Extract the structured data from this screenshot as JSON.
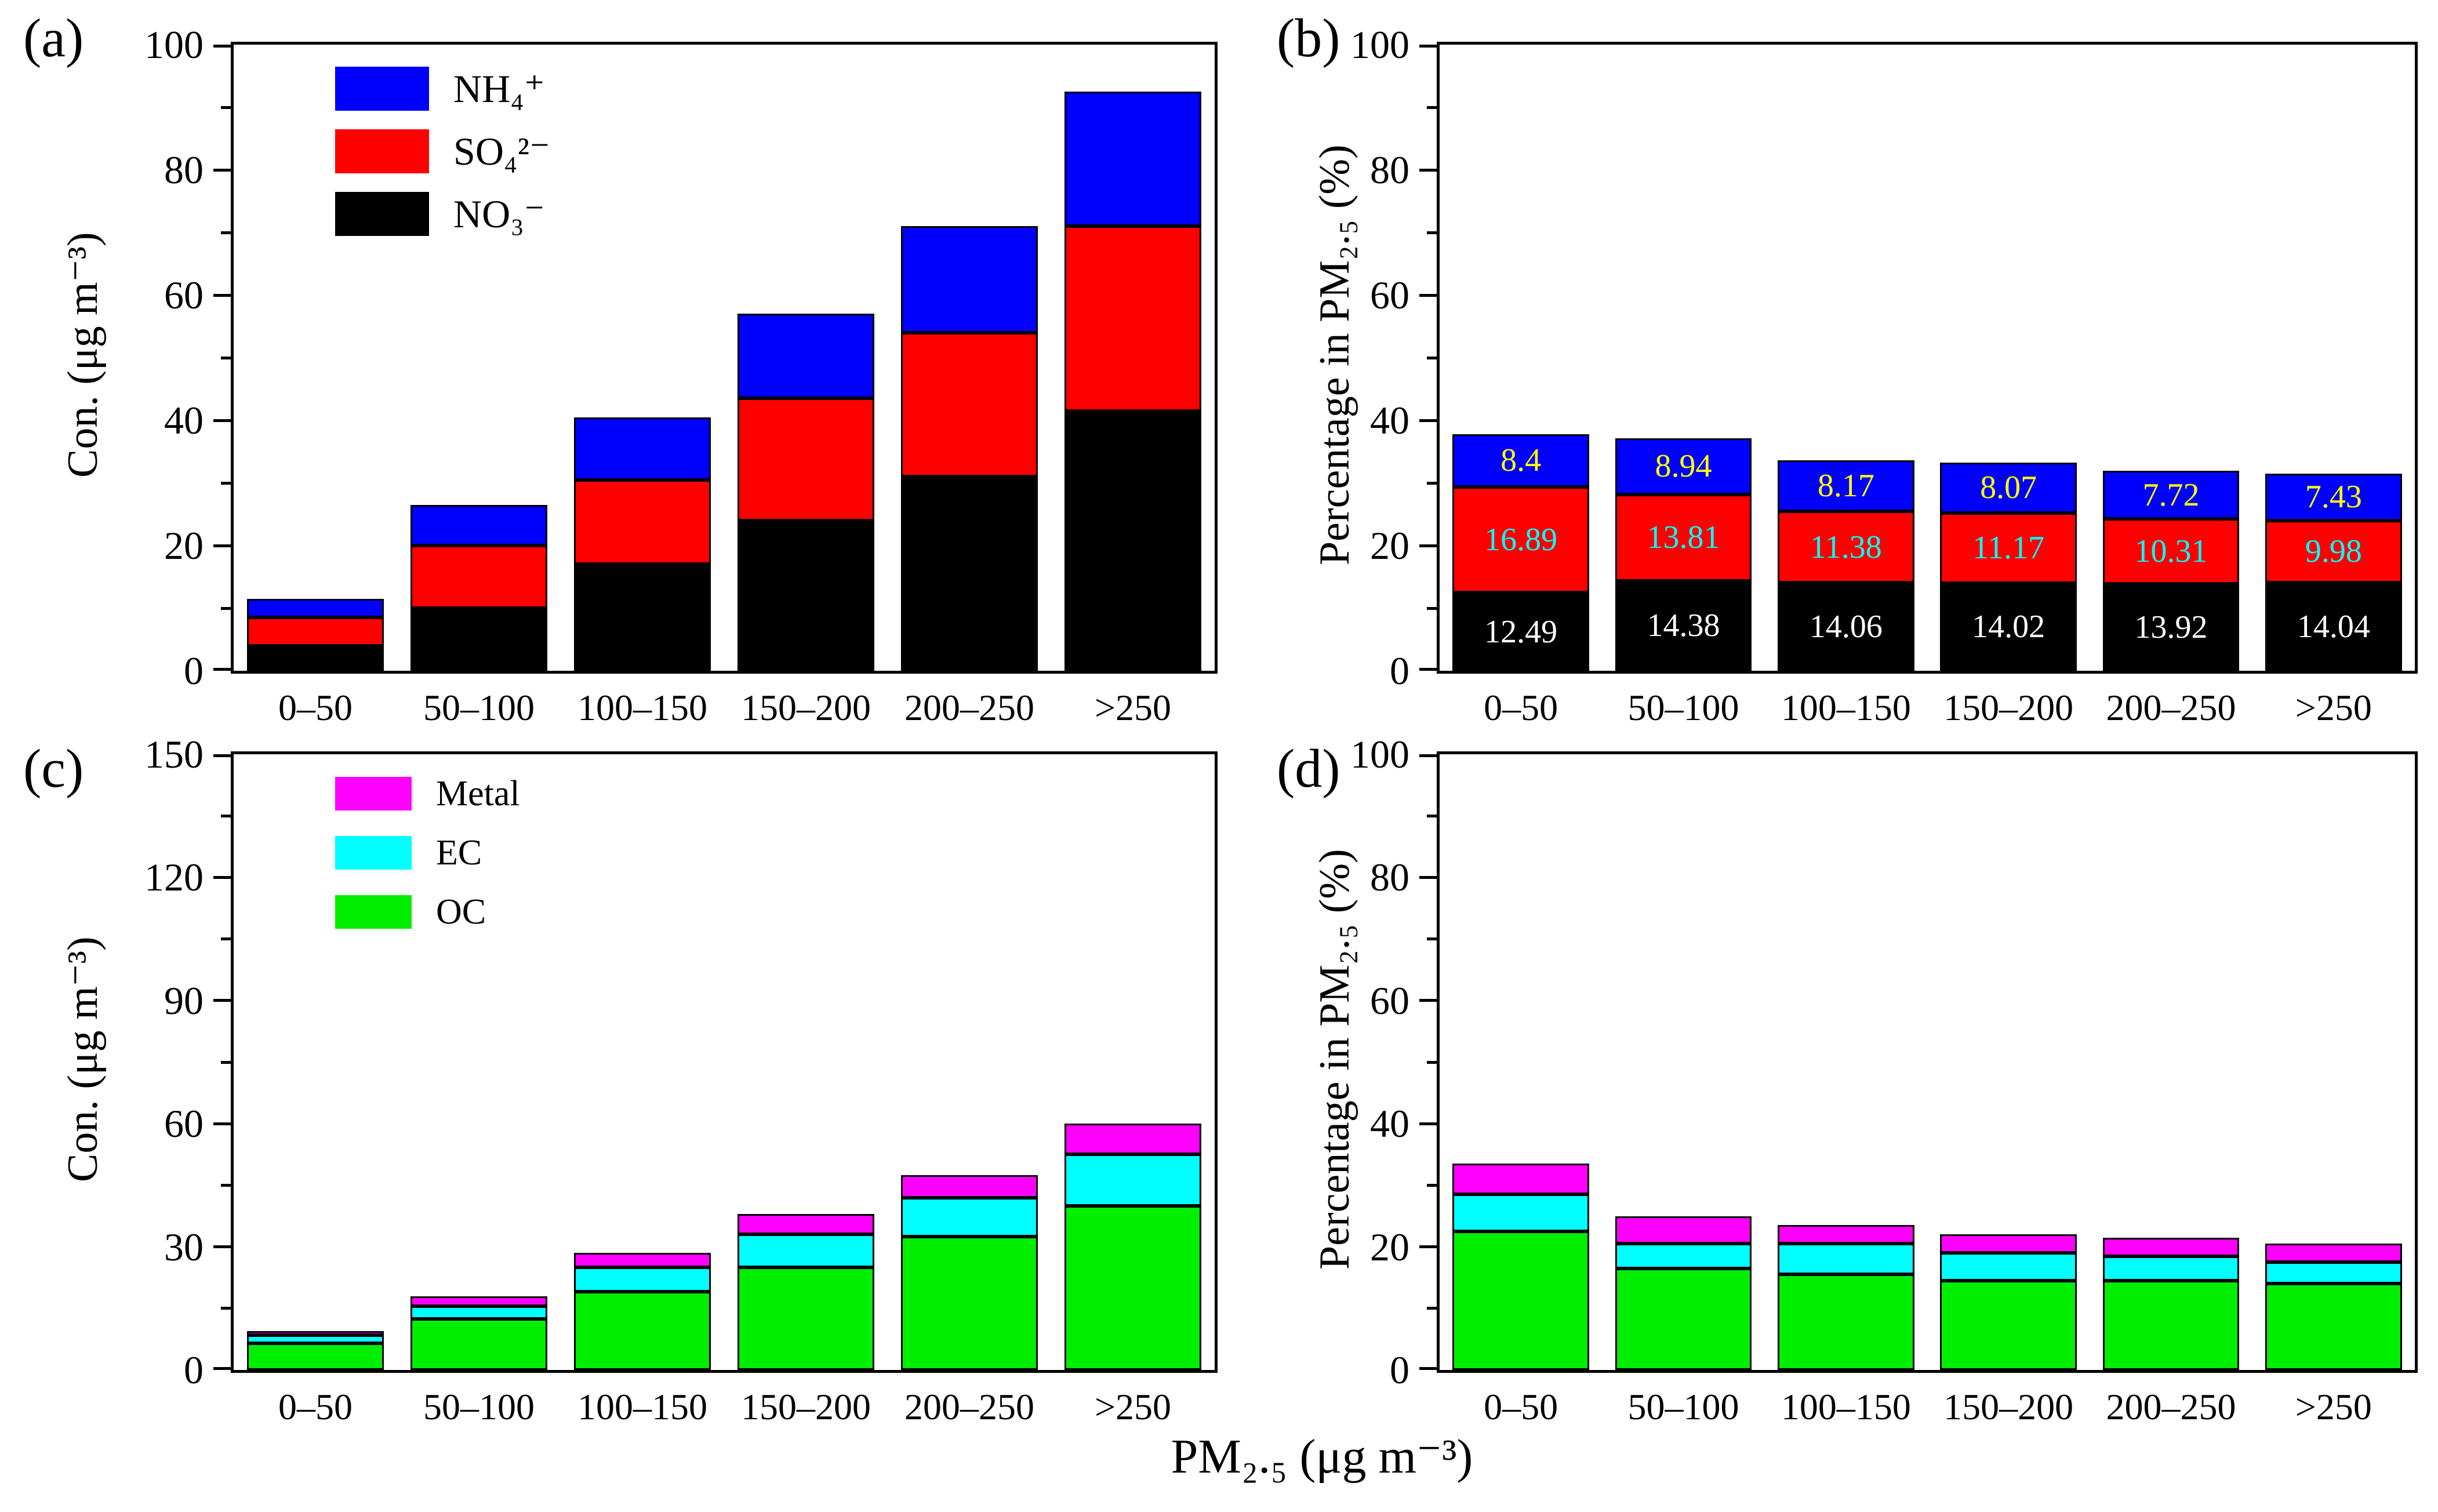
{
  "figure": {
    "xlabel": "PM₂.₅ (μg m⁻³)",
    "categories": [
      "0–50",
      "50–100",
      "100–150",
      "150–200",
      "200–250",
      ">250"
    ]
  },
  "colors": {
    "nh4": "#0000ff",
    "so4": "#ff0000",
    "no3": "#000000",
    "metal": "#ff00ff",
    "ec": "#00ffff",
    "oc": "#00ee00",
    "label_on_black": "#ffffff",
    "label_on_red": "#00ffff",
    "label_on_blue": "#ffff00"
  },
  "chart_data": [
    {
      "id": "a",
      "type": "bar",
      "stacked": true,
      "label": "(a)",
      "ylabel": "Con. (μg m⁻³)",
      "ylim": [
        0,
        100
      ],
      "yticks": [
        0,
        20,
        40,
        60,
        80,
        100
      ],
      "legend": [
        {
          "label": "NH₄⁺",
          "color": "#0000ff"
        },
        {
          "label": "SO₄²⁻",
          "color": "#ff0000"
        },
        {
          "label": "NO₃⁻",
          "color": "#000000"
        }
      ],
      "series": [
        {
          "name": "NO₃⁻",
          "color": "#000000",
          "values": [
            4,
            10,
            17,
            24,
            31,
            41.5
          ]
        },
        {
          "name": "SO₄²⁻",
          "color": "#ff0000",
          "values": [
            4.5,
            10,
            13.5,
            19.5,
            23,
            29.5
          ]
        },
        {
          "name": "NH₄⁺",
          "color": "#0000ff",
          "values": [
            3,
            6.5,
            10,
            13.5,
            17,
            21.5
          ]
        }
      ]
    },
    {
      "id": "b",
      "type": "bar",
      "stacked": true,
      "label": "(b)",
      "ylabel": "Percentage in PM₂.₅ (%)",
      "ylim": [
        0,
        100
      ],
      "yticks": [
        0,
        20,
        40,
        60,
        80,
        100
      ],
      "legend": null,
      "series": [
        {
          "name": "NO₃⁻",
          "color": "#000000",
          "values": [
            12.49,
            14.38,
            14.06,
            14.02,
            13.92,
            14.04
          ],
          "value_labels": [
            "12.49",
            "14.38",
            "14.06",
            "14.02",
            "13.92",
            "14.04"
          ],
          "label_color": "#ffffff"
        },
        {
          "name": "SO₄²⁻",
          "color": "#ff0000",
          "values": [
            16.89,
            13.81,
            11.38,
            11.17,
            10.31,
            9.98
          ],
          "value_labels": [
            "16.89",
            "13.81",
            "11.38",
            "11.17",
            "10.31",
            "9.98"
          ],
          "label_color": "#00ffff"
        },
        {
          "name": "NH₄⁺",
          "color": "#0000ff",
          "values": [
            8.4,
            8.94,
            8.17,
            8.07,
            7.72,
            7.43
          ],
          "value_labels": [
            "8.4",
            "8.94",
            "8.17",
            "8.07",
            "7.72",
            "7.43"
          ],
          "label_color": "#ffff00"
        }
      ]
    },
    {
      "id": "c",
      "type": "bar",
      "stacked": true,
      "label": "(c)",
      "ylabel": "Con. (μg m⁻³)",
      "ylim": [
        0,
        150
      ],
      "yticks": [
        0,
        30,
        60,
        90,
        120,
        150
      ],
      "legend": [
        {
          "label": "Metal",
          "color": "#ff00ff"
        },
        {
          "label": "EC",
          "color": "#00ffff"
        },
        {
          "label": "OC",
          "color": "#00ee00"
        }
      ],
      "series": [
        {
          "name": "OC",
          "color": "#00ee00",
          "values": [
            6.5,
            12.5,
            19,
            25,
            32.5,
            40
          ]
        },
        {
          "name": "EC",
          "color": "#00ffff",
          "values": [
            2,
            3,
            6,
            8,
            9.5,
            12.5
          ]
        },
        {
          "name": "Metal",
          "color": "#ff00ff",
          "values": [
            1,
            2.5,
            3.5,
            5,
            5.5,
            7.5
          ]
        }
      ]
    },
    {
      "id": "d",
      "type": "bar",
      "stacked": true,
      "label": "(d)",
      "ylabel": "Percentage in PM₂.₅ (%)",
      "ylim": [
        0,
        100
      ],
      "yticks": [
        0,
        20,
        40,
        60,
        80,
        100
      ],
      "legend": null,
      "series": [
        {
          "name": "OC",
          "color": "#00ee00",
          "values": [
            22.5,
            16.5,
            15.5,
            14.5,
            14.5,
            14
          ]
        },
        {
          "name": "EC",
          "color": "#00ffff",
          "values": [
            6,
            4,
            5,
            4.5,
            4,
            3.5
          ]
        },
        {
          "name": "Metal",
          "color": "#ff00ff",
          "values": [
            5,
            4.5,
            3,
            3,
            3,
            3
          ]
        }
      ]
    }
  ]
}
